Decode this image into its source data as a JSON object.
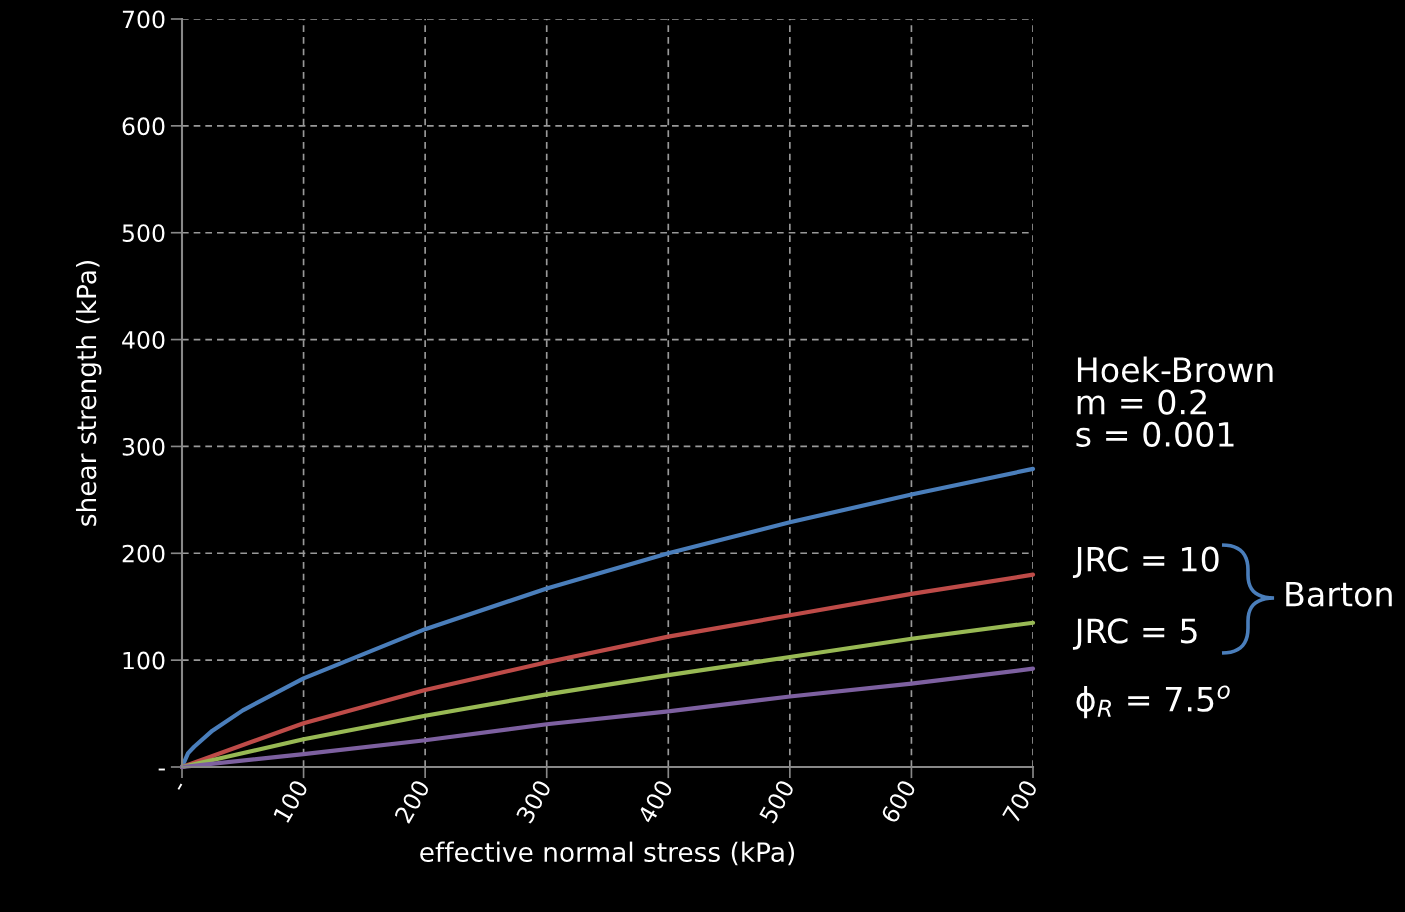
{
  "chart_data": {
    "type": "line",
    "xlabel": "effective normal stress (kPa)",
    "ylabel": "shear strength (kPa)",
    "xlim": [
      0,
      700
    ],
    "ylim": [
      0,
      700
    ],
    "xticks": [
      {
        "value": 0,
        "label": "-"
      },
      100,
      200,
      300,
      400,
      500,
      600,
      700
    ],
    "yticks": [
      {
        "value": 0,
        "label": "-"
      },
      100,
      200,
      300,
      400,
      500,
      600,
      700
    ],
    "grid": true,
    "marker": "none",
    "line_style": "solid",
    "series": [
      {
        "name": "Hoek-Brown\nm = 0.2\ns = 0.001",
        "color": "#4a7ebb",
        "x": [
          0,
          5,
          10,
          25,
          50,
          100,
          200,
          300,
          400,
          500,
          600,
          700
        ],
        "values": [
          0,
          13,
          19,
          34,
          53,
          83,
          129,
          167,
          200,
          229,
          255,
          279
        ]
      },
      {
        "name": "JRC = 10",
        "color": "#be4b48",
        "x": [
          0,
          100,
          200,
          300,
          400,
          500,
          600,
          700
        ],
        "values": [
          0,
          41,
          72,
          98,
          122,
          142,
          162,
          180
        ]
      },
      {
        "name": "JRC = 5",
        "color": "#98b954",
        "x": [
          0,
          100,
          200,
          300,
          400,
          500,
          600,
          700
        ],
        "values": [
          0,
          26,
          48,
          68,
          86,
          103,
          120,
          135
        ]
      },
      {
        "name": "ϕ$_{R}$ = 7.5$^{o}$",
        "color": "#7d60a0",
        "x": [
          0,
          100,
          200,
          300,
          400,
          500,
          600,
          700
        ],
        "values": [
          0,
          12,
          25,
          40,
          52,
          66,
          78,
          92
        ]
      }
    ],
    "annotations": [
      "Barton"
    ]
  }
}
